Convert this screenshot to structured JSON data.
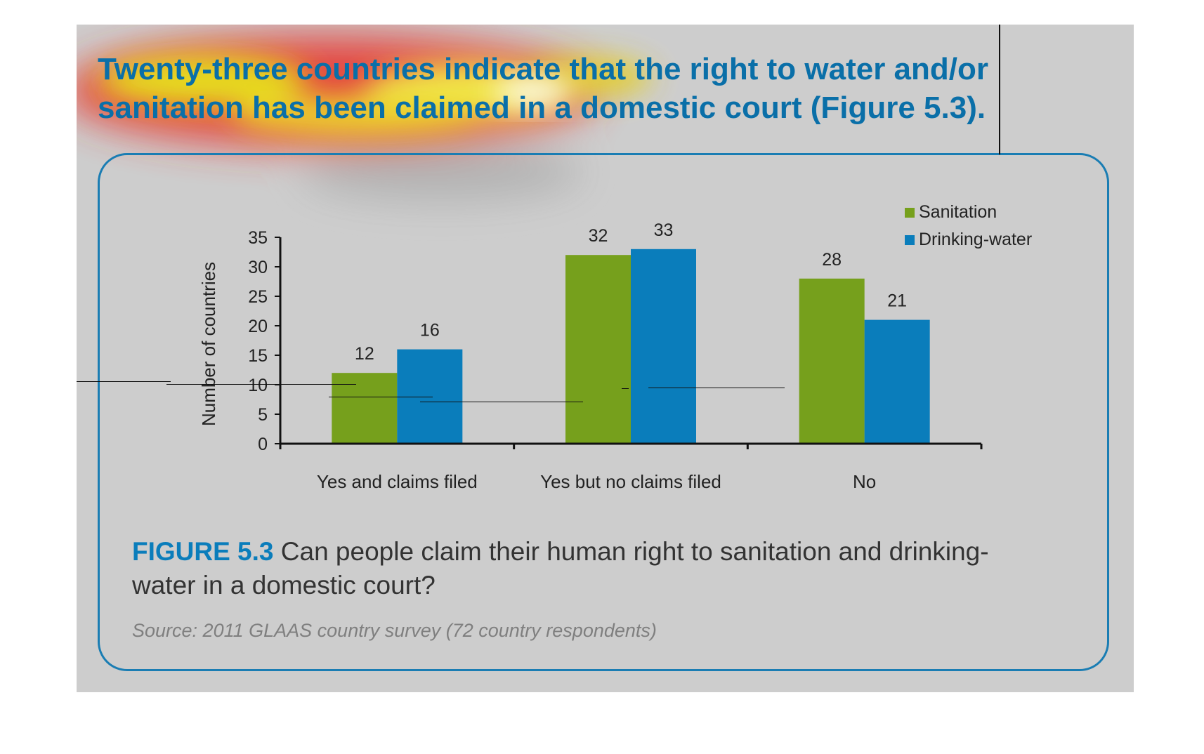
{
  "headline": "Twenty-three countries indicate that the right to water and/or sanitation has been claimed in a domestic court (Figure 5.3).",
  "caption": {
    "label": "FIGURE 5.3",
    "text": " Can people claim their human right to sanitation and drinking-water in a domestic court?"
  },
  "source": "Source: 2011 GLAAS country survey (72 country respondents)",
  "colors": {
    "sanitation": "#76a01c",
    "drinking_water": "#0a7dbb",
    "headline": "#0a6fa8",
    "frame": "#1a7db3",
    "background": "#cdcdcd"
  },
  "chart_data": {
    "type": "bar",
    "categories": [
      "Yes and claims filed",
      "Yes but no claims filed",
      "No"
    ],
    "series": [
      {
        "name": "Sanitation",
        "values": [
          12,
          32,
          28
        ]
      },
      {
        "name": "Drinking-water",
        "values": [
          16,
          33,
          21
        ]
      }
    ],
    "ylabel": "Number of countries",
    "xlabel": "",
    "ylim": [
      0,
      35
    ],
    "yticks": [
      0,
      5,
      10,
      15,
      20,
      25,
      30,
      35
    ],
    "grid": false,
    "legend": "top-right",
    "data_labels": true
  }
}
